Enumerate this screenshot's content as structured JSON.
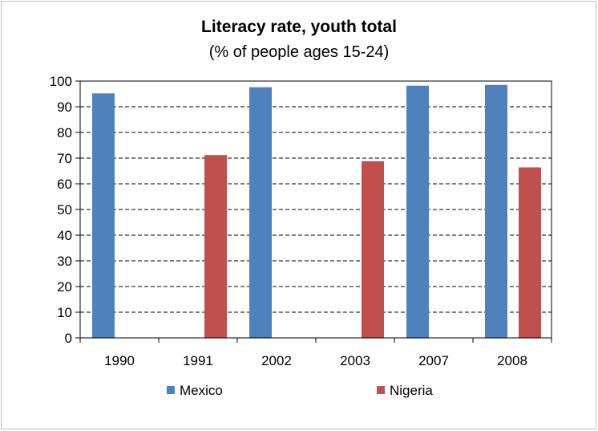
{
  "chart_data": {
    "type": "bar",
    "title": "Literacy rate, youth total",
    "subtitle": "(% of people ages 15-24)",
    "categories": [
      "1990",
      "1991",
      "2002",
      "2003",
      "2007",
      "2008"
    ],
    "series": [
      {
        "name": "Mexico",
        "color": "#4f81bd",
        "values": [
          95.2,
          null,
          97.6,
          null,
          98.2,
          98.5
        ]
      },
      {
        "name": "Nigeria",
        "color": "#c0504d",
        "values": [
          null,
          71.2,
          null,
          68.8,
          null,
          66.4
        ]
      }
    ],
    "ylim": [
      0,
      100
    ],
    "yticks": [
      0,
      10,
      20,
      30,
      40,
      50,
      60,
      70,
      80,
      90,
      100
    ],
    "grid": "horizontal dashed",
    "legend_position": "bottom"
  }
}
